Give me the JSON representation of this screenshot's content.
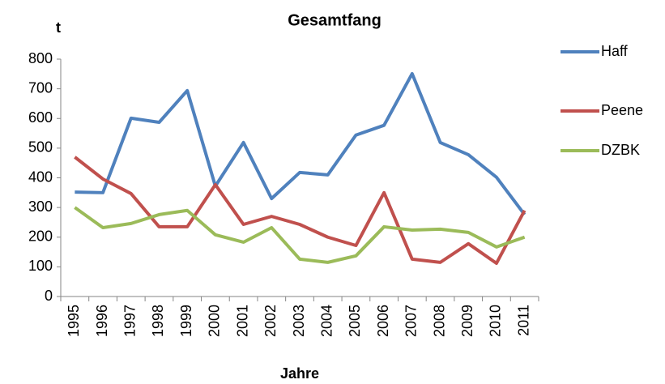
{
  "chart_data": {
    "type": "line",
    "title": "Gesamtfang",
    "y_label": "t",
    "x_label": "Jahre",
    "categories": [
      "1995",
      "1996",
      "1997",
      "1998",
      "1999",
      "2000",
      "2001",
      "2002",
      "2003",
      "2004",
      "2005",
      "2006",
      "2007",
      "2008",
      "2009",
      "2010",
      "2011"
    ],
    "series": [
      {
        "name": "Haff",
        "color": "#4f81bd",
        "values": [
          352,
          350,
          601,
          587,
          694,
          372,
          519,
          330,
          418,
          410,
          544,
          577,
          751,
          519,
          478,
          402,
          276
        ]
      },
      {
        "name": "Peene",
        "color": "#c0504d",
        "values": [
          470,
          396,
          347,
          235,
          235,
          377,
          243,
          270,
          243,
          200,
          172,
          350,
          126,
          115,
          178,
          112,
          290
        ]
      },
      {
        "name": "DZBK",
        "color": "#9bbb59",
        "values": [
          300,
          232,
          246,
          276,
          290,
          208,
          183,
          232,
          126,
          115,
          137,
          235,
          224,
          227,
          216,
          167,
          200
        ]
      }
    ],
    "ylim": [
      0,
      800
    ],
    "yticks": [
      0,
      100,
      200,
      300,
      400,
      500,
      600,
      700,
      800
    ],
    "grid": false,
    "legend": "right"
  }
}
